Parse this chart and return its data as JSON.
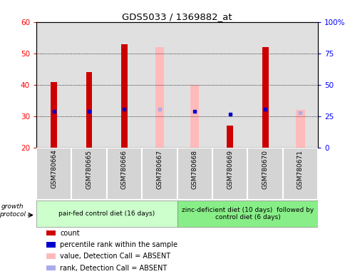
{
  "title": "GDS5033 / 1369882_at",
  "samples": [
    "GSM780664",
    "GSM780665",
    "GSM780666",
    "GSM780667",
    "GSM780668",
    "GSM780669",
    "GSM780670",
    "GSM780671"
  ],
  "count_values": [
    41,
    44,
    53,
    null,
    null,
    27,
    52,
    null
  ],
  "pink_values": [
    null,
    null,
    null,
    52,
    40,
    null,
    null,
    32
  ],
  "blue_rank": [
    29,
    29,
    31,
    31,
    29,
    27,
    31,
    28
  ],
  "blue_rank_absent": [
    false,
    false,
    false,
    true,
    false,
    false,
    false,
    true
  ],
  "ylim_left": [
    20,
    60
  ],
  "ylim_right": [
    0,
    100
  ],
  "yticks_left": [
    20,
    30,
    40,
    50,
    60
  ],
  "yticks_right": [
    0,
    25,
    50,
    75,
    100
  ],
  "yticklabels_right": [
    "0",
    "25",
    "50",
    "75",
    "100%"
  ],
  "group1_label": "pair-fed control diet (16 days)",
  "group2_label": "zinc-deficient diet (10 days)  followed by\ncontrol diet (6 days)",
  "group1_indices": [
    0,
    1,
    2,
    3
  ],
  "group2_indices": [
    4,
    5,
    6,
    7
  ],
  "growth_protocol_label": "growth protocol",
  "bar_color_red": "#cc0000",
  "bar_color_pink": "#ffbbbb",
  "dot_color_blue": "#0000cc",
  "dot_color_lightblue": "#aaaaee",
  "bg_color_plot": "#e0e0e0",
  "bg_color_group1": "#ccffcc",
  "bg_color_group2": "#88ee88",
  "bar_width": 0.18
}
